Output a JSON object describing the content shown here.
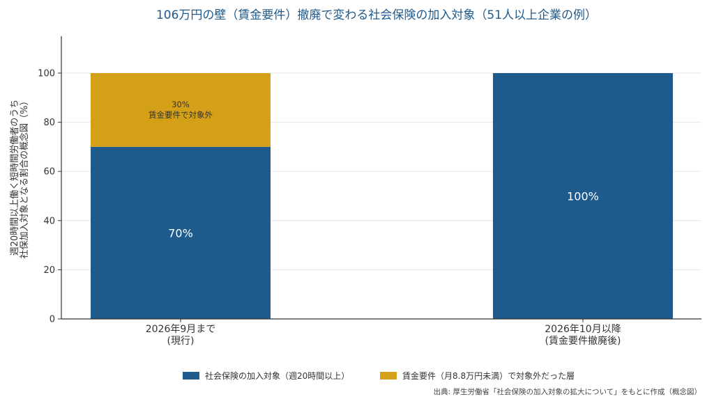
{
  "chart_data": {
    "type": "bar",
    "stacked": true,
    "title": "106万円の壁（賃金要件）撤廃で変わる社会保険の加入対象（51人以上企業の例）",
    "ylabel": [
      "週20時間以上働く短時間労働者のうち",
      "社保加入対象となる割合の概念図（%）"
    ],
    "categories": [
      [
        "2026年9月まで",
        "(現行)"
      ],
      [
        "2026年10月以降",
        "(賃金要件撤廃後)"
      ]
    ],
    "ylim": [
      0,
      115
    ],
    "yticks": [
      0,
      20,
      40,
      60,
      80,
      100
    ],
    "grid": true,
    "series": [
      {
        "name": "社会保険の加入対象（週20時間以上）",
        "color": "#1f5a8c",
        "values": [
          70,
          100
        ],
        "labels": [
          [
            "70%"
          ],
          [
            "100%"
          ]
        ]
      },
      {
        "name": "賃金要件（月8.8万円未満）で対象外だった層",
        "color": "#d4a017",
        "values": [
          30,
          0
        ],
        "labels": [
          [
            "30%",
            "賃金要件で対象外"
          ],
          []
        ]
      }
    ],
    "legend_position": "bottom",
    "source": "出典: 厚生労働省「社会保険の加入対象の拡大について」をもとに作成（概念図）"
  }
}
